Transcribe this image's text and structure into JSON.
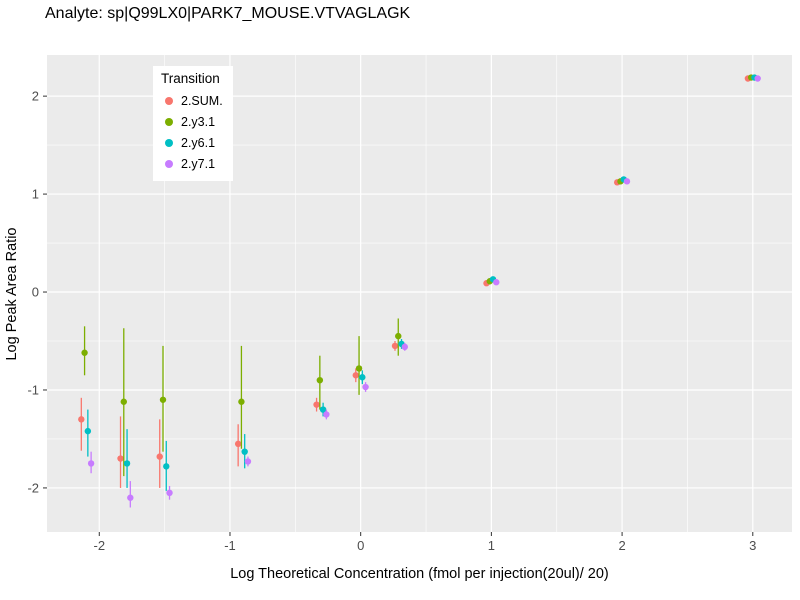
{
  "chart_data": {
    "type": "scatter",
    "title": "Analyte: sp|Q99LX0|PARK7_MOUSE.VTVAGLAGK",
    "xlabel": "Log Theoretical Concentration (fmol per injection(20ul)/ 20)",
    "ylabel": "Log Peak Area Ratio",
    "xlim": [
      -2.4,
      3.3
    ],
    "ylim": [
      -2.45,
      2.42
    ],
    "xticks": [
      -2,
      -1,
      0,
      1,
      2,
      3
    ],
    "yticks": [
      -2,
      -1,
      0,
      1,
      2
    ],
    "grid": true,
    "legend_title": "Transition",
    "legend_position": "inside-top-left",
    "panel_background": "#EBEBEB",
    "grid_color": "#FFFFFF",
    "tick_text_color": "#4D4D4D",
    "dodge": 0.025,
    "series": [
      {
        "name": "2.SUM.",
        "color": "#F8766D",
        "points": [
          {
            "x": -2.1,
            "y": -1.3,
            "ymin": -1.62,
            "ymax": -1.08
          },
          {
            "x": -1.8,
            "y": -1.7,
            "ymin": -2.0,
            "ymax": -1.27
          },
          {
            "x": -1.5,
            "y": -1.68,
            "ymin": -2.0,
            "ymax": -1.3
          },
          {
            "x": -0.9,
            "y": -1.55,
            "ymin": -1.78,
            "ymax": -1.35
          },
          {
            "x": -0.3,
            "y": -1.15,
            "ymin": -1.22,
            "ymax": -1.08
          },
          {
            "x": 0.0,
            "y": -0.85,
            "ymin": -0.92,
            "ymax": -0.78
          },
          {
            "x": 0.3,
            "y": -0.55,
            "ymin": -0.6,
            "ymax": -0.5
          },
          {
            "x": 1.0,
            "y": 0.09,
            "ymin": 0.09,
            "ymax": 0.09
          },
          {
            "x": 2.0,
            "y": 1.12,
            "ymin": 1.12,
            "ymax": 1.12
          },
          {
            "x": 3.0,
            "y": 2.18,
            "ymin": 2.18,
            "ymax": 2.18
          }
        ]
      },
      {
        "name": "2.y3.1",
        "color": "#7CAE00",
        "points": [
          {
            "x": -2.1,
            "y": -0.62,
            "ymin": -0.85,
            "ymax": -0.35
          },
          {
            "x": -1.8,
            "y": -1.12,
            "ymin": -1.88,
            "ymax": -0.37
          },
          {
            "x": -1.5,
            "y": -1.1,
            "ymin": -1.63,
            "ymax": -0.55
          },
          {
            "x": -0.9,
            "y": -1.12,
            "ymin": -1.6,
            "ymax": -0.55
          },
          {
            "x": -0.3,
            "y": -0.9,
            "ymin": -1.2,
            "ymax": -0.65
          },
          {
            "x": 0.0,
            "y": -0.78,
            "ymin": -1.05,
            "ymax": -0.45
          },
          {
            "x": 0.3,
            "y": -0.45,
            "ymin": -0.65,
            "ymax": -0.27
          },
          {
            "x": 1.0,
            "y": 0.11,
            "ymin": 0.11,
            "ymax": 0.11
          },
          {
            "x": 2.0,
            "y": 1.13,
            "ymin": 1.13,
            "ymax": 1.13
          },
          {
            "x": 3.0,
            "y": 2.19,
            "ymin": 2.19,
            "ymax": 2.19
          }
        ]
      },
      {
        "name": "2.y6.1",
        "color": "#00BFC4",
        "points": [
          {
            "x": -2.1,
            "y": -1.42,
            "ymin": -1.68,
            "ymax": -1.2
          },
          {
            "x": -1.8,
            "y": -1.75,
            "ymin": -2.0,
            "ymax": -1.4
          },
          {
            "x": -1.5,
            "y": -1.78,
            "ymin": -2.03,
            "ymax": -1.52
          },
          {
            "x": -0.9,
            "y": -1.63,
            "ymin": -1.8,
            "ymax": -1.45
          },
          {
            "x": -0.3,
            "y": -1.2,
            "ymin": -1.27,
            "ymax": -1.13
          },
          {
            "x": 0.0,
            "y": -0.87,
            "ymin": -0.94,
            "ymax": -0.8
          },
          {
            "x": 0.3,
            "y": -0.53,
            "ymin": -0.58,
            "ymax": -0.48
          },
          {
            "x": 1.0,
            "y": 0.13,
            "ymin": 0.13,
            "ymax": 0.13
          },
          {
            "x": 2.0,
            "y": 1.15,
            "ymin": 1.15,
            "ymax": 1.15
          },
          {
            "x": 3.0,
            "y": 2.19,
            "ymin": 2.19,
            "ymax": 2.19
          }
        ]
      },
      {
        "name": "2.y7.1",
        "color": "#C77CFF",
        "points": [
          {
            "x": -2.1,
            "y": -1.75,
            "ymin": -1.85,
            "ymax": -1.63
          },
          {
            "x": -1.8,
            "y": -2.1,
            "ymin": -2.2,
            "ymax": -1.93
          },
          {
            "x": -1.5,
            "y": -2.05,
            "ymin": -2.12,
            "ymax": -1.98
          },
          {
            "x": -0.9,
            "y": -1.73,
            "ymin": -1.78,
            "ymax": -1.68
          },
          {
            "x": -0.3,
            "y": -1.25,
            "ymin": -1.3,
            "ymax": -1.2
          },
          {
            "x": 0.0,
            "y": -0.97,
            "ymin": -1.02,
            "ymax": -0.92
          },
          {
            "x": 0.3,
            "y": -0.56,
            "ymin": -0.6,
            "ymax": -0.52
          },
          {
            "x": 1.0,
            "y": 0.1,
            "ymin": 0.1,
            "ymax": 0.1
          },
          {
            "x": 2.0,
            "y": 1.13,
            "ymin": 1.13,
            "ymax": 1.13
          },
          {
            "x": 3.0,
            "y": 2.18,
            "ymin": 2.18,
            "ymax": 2.18
          }
        ]
      }
    ]
  }
}
